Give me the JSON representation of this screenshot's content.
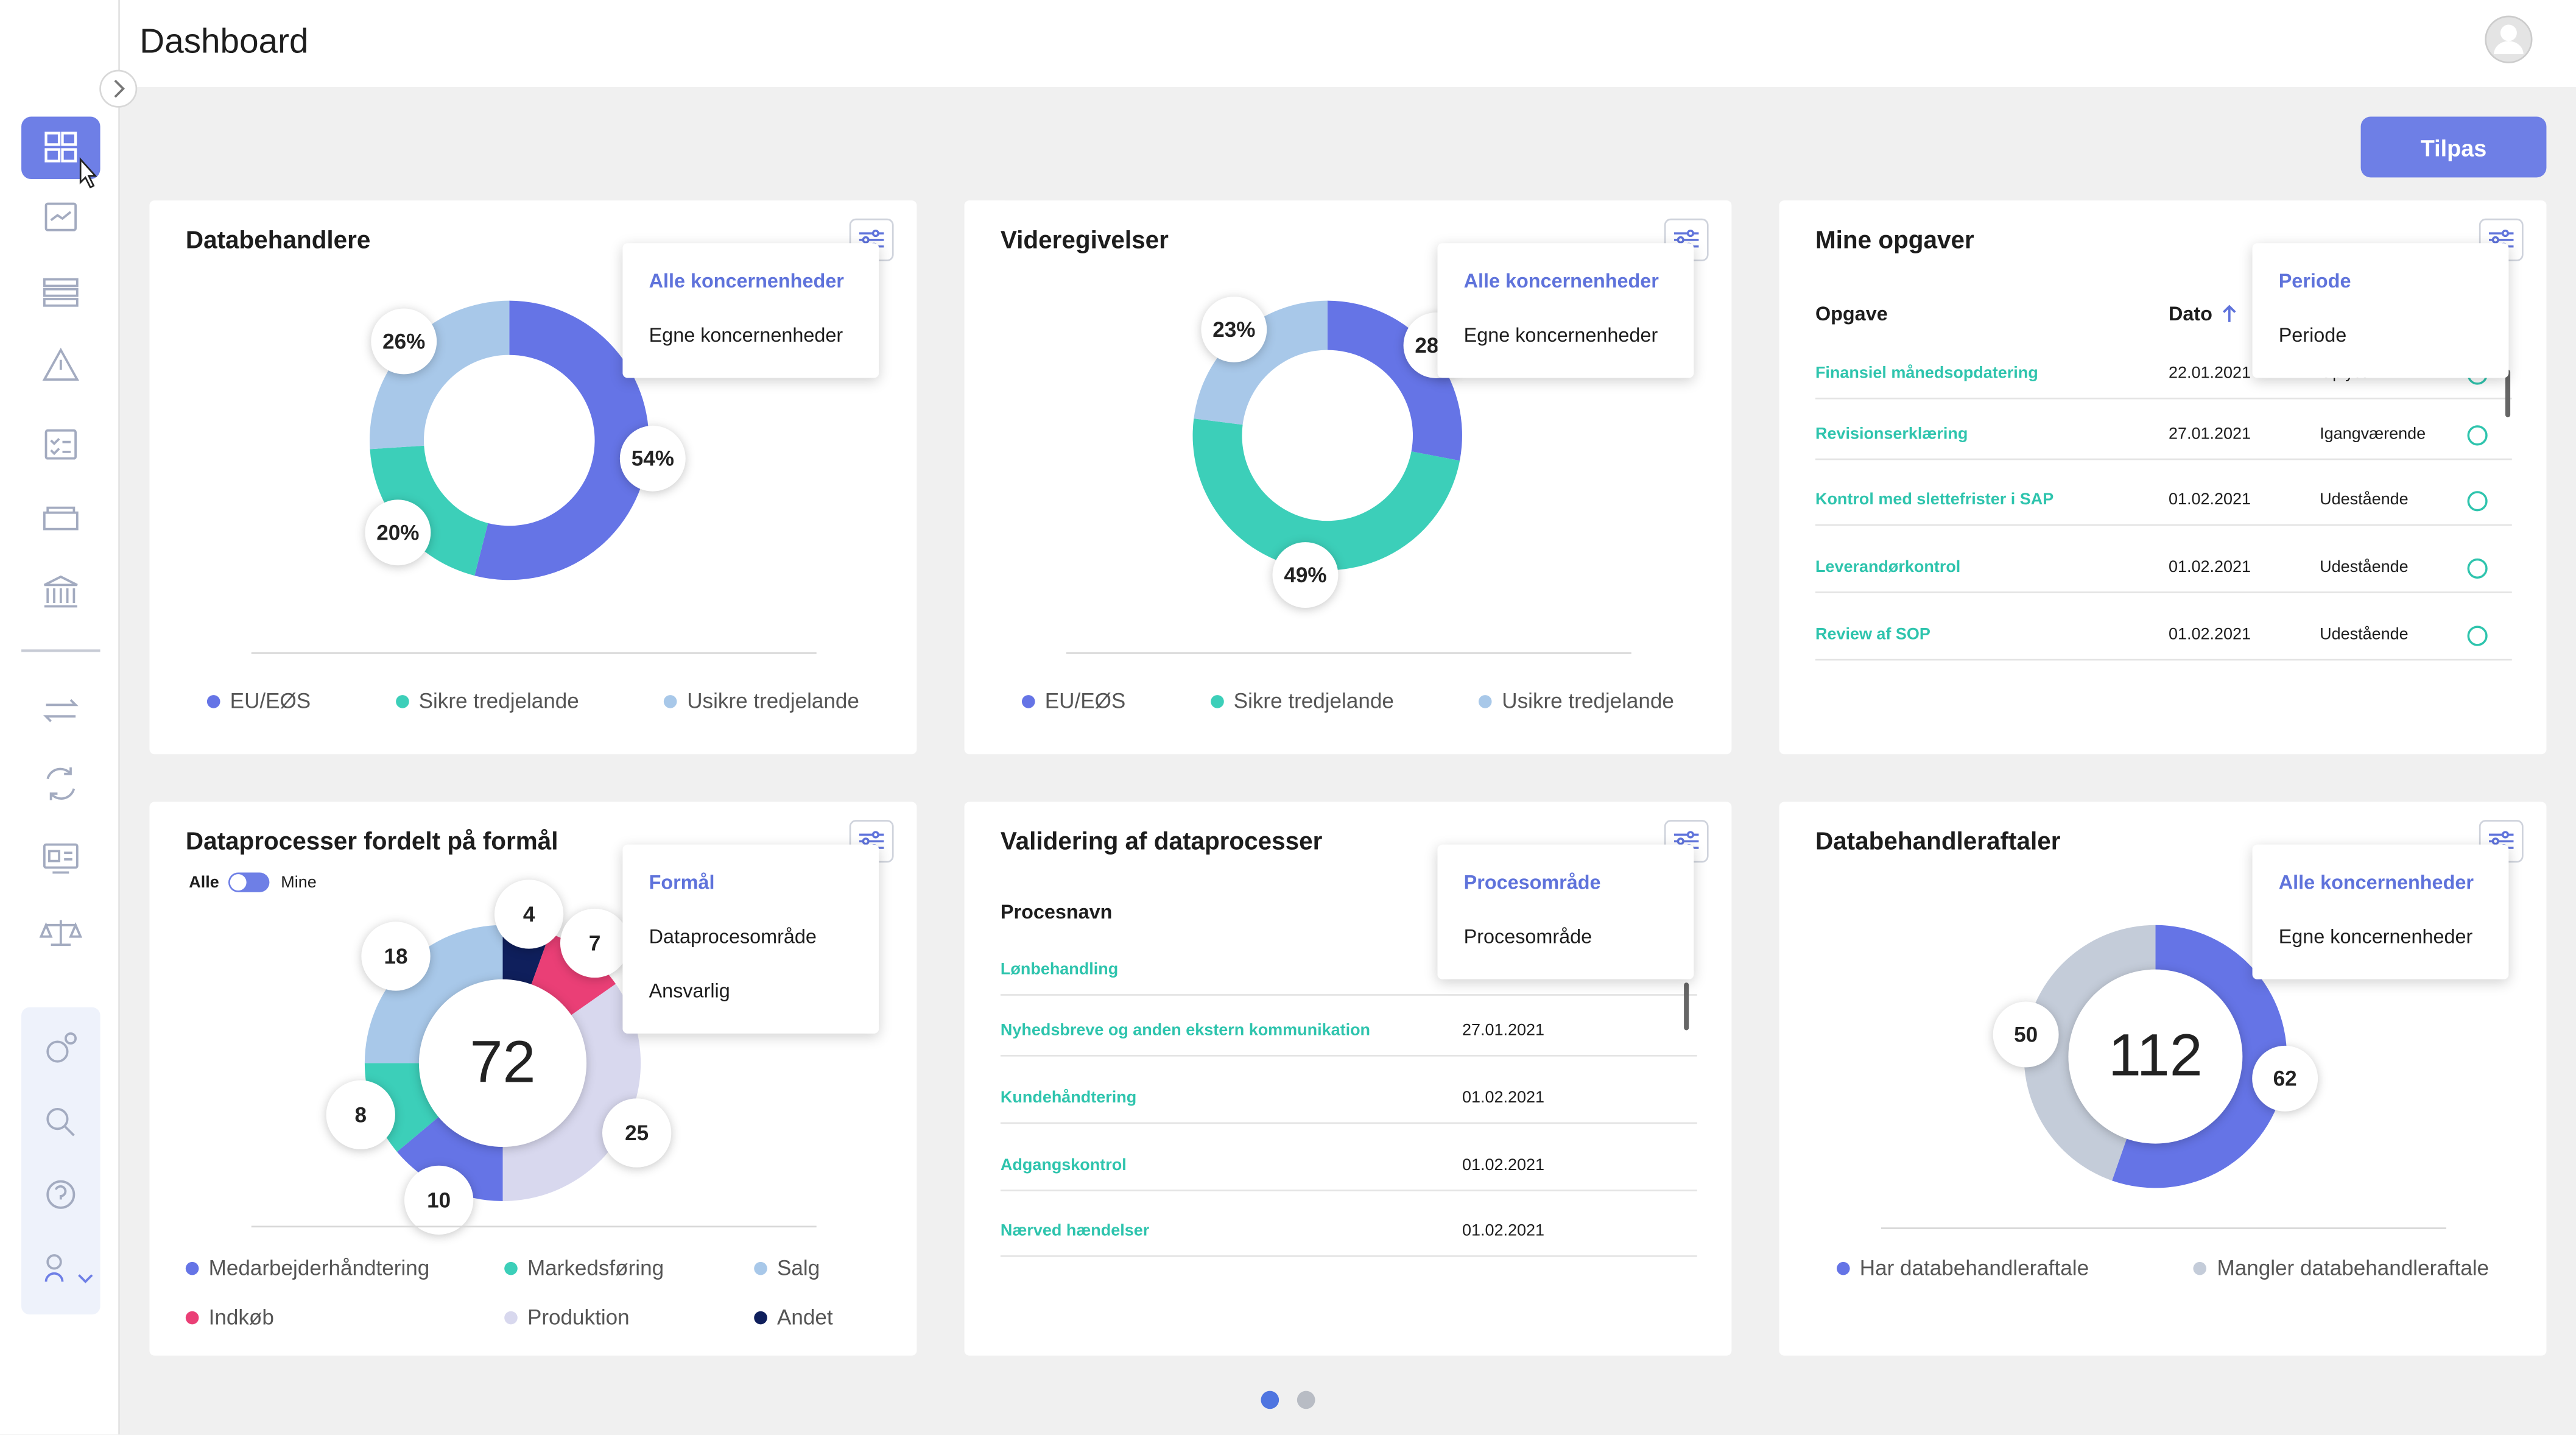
{
  "header": {
    "title": "Dashboard"
  },
  "actions": {
    "customize": "Tilpas"
  },
  "cards": [
    {
      "title": "Databehandlere",
      "filter": [
        "Alle koncernenheder",
        "Egne koncernenheder"
      ],
      "chart": {
        "type": "donut",
        "series": [
          {
            "name": "EU/EØS",
            "color": "#6574e6",
            "value": 54,
            "value_label": "54%"
          },
          {
            "name": "Sikre tredjelande",
            "color": "#3ccfb9",
            "value": 20,
            "value_label": "20%"
          },
          {
            "name": "Usikre tredjelande",
            "color": "#a8c8e9",
            "value": 26,
            "value_label": "26%"
          }
        ]
      }
    },
    {
      "title": "Videregivelser",
      "filter": [
        "Alle koncernenheder",
        "Egne koncernenheder"
      ],
      "chart": {
        "type": "donut",
        "series": [
          {
            "name": "EU/EØS",
            "color": "#6574e6",
            "value": 28,
            "value_label": "28%"
          },
          {
            "name": "Sikre tredjelande",
            "color": "#3ccfb9",
            "value": 49,
            "value_label": "49%"
          },
          {
            "name": "Usikre tredjelande",
            "color": "#a8c8e9",
            "value": 23,
            "value_label": "23%"
          }
        ]
      }
    },
    {
      "title": "Mine opgaver",
      "filter": [
        "Periode",
        "Periode"
      ],
      "table": {
        "columns": [
          "Opgave",
          "Dato"
        ],
        "rows": [
          [
            "Finansiel månedsopdatering",
            "22.01.2021",
            "Oplyst"
          ],
          [
            "Revisionserklæring",
            "27.01.2021",
            "Igangværende"
          ],
          [
            "Kontrol med slettefrister i SAP",
            "01.02.2021",
            "Udestående"
          ],
          [
            "Leverandørkontrol",
            "01.02.2021",
            "Udestående"
          ],
          [
            "Review af SOP",
            "01.02.2021",
            "Udestående"
          ]
        ]
      }
    },
    {
      "title": "Dataprocesser fordelt på formål",
      "toggle": [
        "Alle",
        "Mine"
      ],
      "filter": [
        "Formål",
        "Dataprocesområde",
        "Ansvarlig"
      ],
      "chart": {
        "type": "donut",
        "total": 72,
        "series": [
          {
            "name": "Medarbejderhåndtering",
            "color": "#6574e6",
            "value": 10
          },
          {
            "name": "Markedsføring",
            "color": "#3ccfb9",
            "value": 8
          },
          {
            "name": "Salg",
            "color": "#a8c8e9",
            "value": 18
          },
          {
            "name": "Indkøb",
            "color": "#ea3f76",
            "value": 7
          },
          {
            "name": "Produktion",
            "color": "#d8d8ee",
            "value": 25
          },
          {
            "name": "Andet",
            "color": "#0f1f5c",
            "value": 4
          }
        ]
      }
    },
    {
      "title": "Validering af dataprocesser",
      "filter": [
        "Procesområde",
        "Procesområde"
      ],
      "table": {
        "columns": [
          "Procesnavn"
        ],
        "rows": [
          [
            "Lønbehandling"
          ],
          [
            "Nyhedsbreve og anden ekstern kommunikation",
            "27.01.2021"
          ],
          [
            "Kundehåndtering",
            "01.02.2021"
          ],
          [
            "Adgangskontrol",
            "01.02.2021"
          ],
          [
            "Nærved hændelser",
            "01.02.2021"
          ]
        ]
      }
    },
    {
      "title": "Databehandleraftaler",
      "filter": [
        "Alle koncernenheder",
        "Egne koncernenheder"
      ],
      "chart": {
        "type": "donut",
        "total": 112,
        "series": [
          {
            "name": "Har databehandleraftale",
            "color": "#6574e6",
            "value": 62
          },
          {
            "name": "Mangler databehandleraftale",
            "color": "#c4ccd9",
            "value": 50
          }
        ]
      }
    }
  ]
}
